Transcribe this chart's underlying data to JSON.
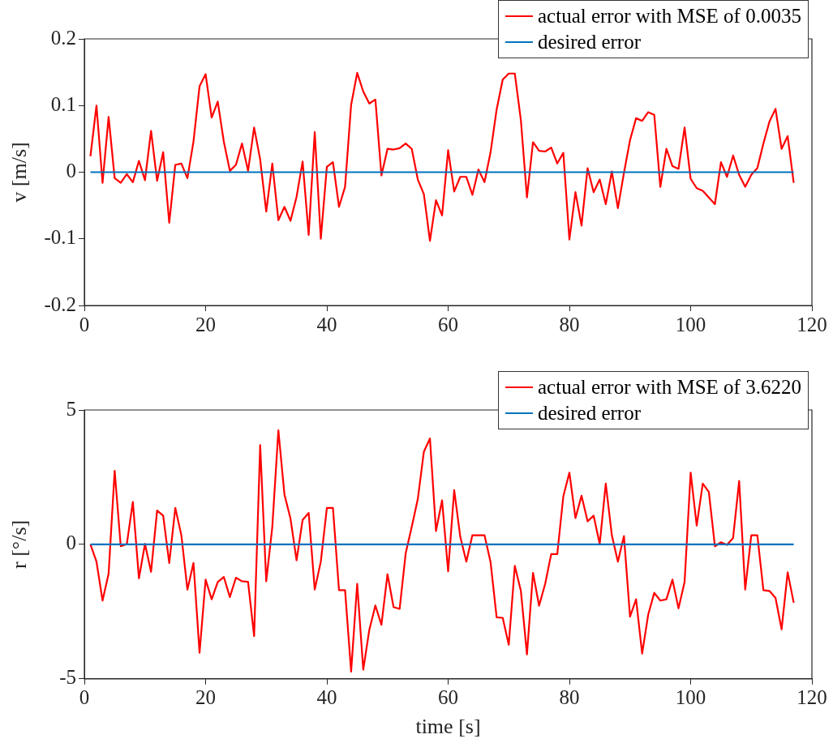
{
  "chart_data": [
    {
      "type": "line",
      "ylabel": "v [m/s]",
      "x": [
        1,
        2,
        3,
        4,
        5,
        6,
        7,
        8,
        9,
        10,
        11,
        12,
        13,
        14,
        15,
        16,
        17,
        18,
        19,
        20,
        21,
        22,
        23,
        24,
        25,
        26,
        27,
        28,
        29,
        30,
        31,
        32,
        33,
        34,
        35,
        36,
        37,
        38,
        39,
        40,
        41,
        42,
        43,
        44,
        45,
        46,
        47,
        48,
        49,
        50,
        51,
        52,
        53,
        54,
        55,
        56,
        57,
        58,
        59,
        60,
        61,
        62,
        63,
        64,
        65,
        66,
        67,
        68,
        69,
        70,
        71,
        72,
        73,
        74,
        75,
        76,
        77,
        78,
        79,
        80,
        81,
        82,
        83,
        84,
        85,
        86,
        87,
        88,
        89,
        90,
        91,
        92,
        93,
        94,
        95,
        96,
        97,
        98,
        99,
        100,
        101,
        102,
        103,
        104,
        105,
        106,
        107,
        108,
        109,
        110,
        111,
        112,
        113,
        114,
        115,
        116,
        117
      ],
      "series": [
        {
          "name": "actual error with MSE of 0.0035",
          "color": "#ff0000",
          "values": [
            0.024,
            0.1,
            -0.016,
            0.083,
            -0.009,
            -0.016,
            -0.003,
            -0.015,
            0.017,
            -0.012,
            0.062,
            -0.013,
            0.03,
            -0.076,
            0.011,
            0.013,
            -0.009,
            0.046,
            0.129,
            0.147,
            0.082,
            0.106,
            0.046,
            0.002,
            0.011,
            0.043,
            0.002,
            0.067,
            0.019,
            -0.059,
            0.013,
            -0.072,
            -0.052,
            -0.073,
            -0.037,
            0.016,
            -0.094,
            0.06,
            -0.1,
            0.008,
            0.015,
            -0.052,
            -0.022,
            0.101,
            0.149,
            0.121,
            0.103,
            0.109,
            -0.005,
            0.035,
            0.034,
            0.036,
            0.043,
            0.035,
            -0.011,
            -0.033,
            -0.103,
            -0.042,
            -0.065,
            0.033,
            -0.029,
            -0.007,
            -0.007,
            -0.034,
            0.004,
            -0.015,
            0.03,
            0.094,
            0.139,
            0.148,
            0.148,
            0.078,
            -0.038,
            0.045,
            0.032,
            0.031,
            0.037,
            0.013,
            0.029,
            -0.101,
            -0.03,
            -0.08,
            0.006,
            -0.03,
            -0.011,
            -0.048,
            0.001,
            -0.054,
            -0.001,
            0.048,
            0.081,
            0.077,
            0.09,
            0.086,
            -0.022,
            0.035,
            0.009,
            0.005,
            0.067,
            -0.01,
            -0.024,
            -0.028,
            -0.038,
            -0.048,
            0.015,
            -0.007,
            0.025,
            -0.004,
            -0.022,
            -0.004,
            0.006,
            0.043,
            0.076,
            0.095,
            0.035,
            0.054,
            -0.016
          ]
        },
        {
          "name": "desired error",
          "color": "#0072bd",
          "values": [
            0,
            0,
            0,
            0,
            0,
            0,
            0,
            0,
            0,
            0,
            0,
            0,
            0,
            0,
            0,
            0,
            0,
            0,
            0,
            0,
            0,
            0,
            0,
            0,
            0,
            0,
            0,
            0,
            0,
            0,
            0,
            0,
            0,
            0,
            0,
            0,
            0,
            0,
            0,
            0,
            0,
            0,
            0,
            0,
            0,
            0,
            0,
            0,
            0,
            0,
            0,
            0,
            0,
            0,
            0,
            0,
            0,
            0,
            0,
            0,
            0,
            0,
            0,
            0,
            0,
            0,
            0,
            0,
            0,
            0,
            0,
            0,
            0,
            0,
            0,
            0,
            0,
            0,
            0,
            0,
            0,
            0,
            0,
            0,
            0,
            0,
            0,
            0,
            0,
            0,
            0,
            0,
            0,
            0,
            0,
            0,
            0,
            0,
            0,
            0,
            0,
            0,
            0,
            0,
            0,
            0,
            0,
            0,
            0,
            0,
            0,
            0,
            0,
            0,
            0,
            0,
            0
          ]
        }
      ],
      "xlim": [
        0,
        120
      ],
      "xticks": [
        0,
        20,
        40,
        60,
        80,
        100,
        120
      ],
      "ylim": [
        -0.2,
        0.2
      ],
      "yticks": [
        -0.2,
        -0.1,
        0,
        0.1,
        0.2
      ],
      "grid": false,
      "legend": "top right",
      "marker": "none",
      "line_style": "solid"
    },
    {
      "type": "line",
      "xlabel": "time [s]",
      "ylabel": "r [°/s]",
      "x": [
        1,
        2,
        3,
        4,
        5,
        6,
        7,
        8,
        9,
        10,
        11,
        12,
        13,
        14,
        15,
        16,
        17,
        18,
        19,
        20,
        21,
        22,
        23,
        24,
        25,
        26,
        27,
        28,
        29,
        30,
        31,
        32,
        33,
        34,
        35,
        36,
        37,
        38,
        39,
        40,
        41,
        42,
        43,
        44,
        45,
        46,
        47,
        48,
        49,
        50,
        51,
        52,
        53,
        54,
        55,
        56,
        57,
        58,
        59,
        60,
        61,
        62,
        63,
        64,
        65,
        66,
        67,
        68,
        69,
        70,
        71,
        72,
        73,
        74,
        75,
        76,
        77,
        78,
        79,
        80,
        81,
        82,
        83,
        84,
        85,
        86,
        87,
        88,
        89,
        90,
        91,
        92,
        93,
        94,
        95,
        96,
        97,
        98,
        99,
        100,
        101,
        102,
        103,
        104,
        105,
        106,
        107,
        108,
        109,
        110,
        111,
        112,
        113,
        114,
        115,
        116,
        117
      ],
      "series": [
        {
          "name": "actual error with MSE of 3.6220",
          "color": "#ff0000",
          "values": [
            0,
            -0.64,
            -2.09,
            -1.09,
            2.74,
            -0.07,
            0.01,
            1.58,
            -1.26,
            0.02,
            -1.02,
            1.26,
            1.07,
            -0.69,
            1.36,
            0.34,
            -1.68,
            -0.69,
            -4.03,
            -1.31,
            -2.04,
            -1.4,
            -1.21,
            -1.96,
            -1.24,
            -1.37,
            -1.39,
            -3.41,
            3.69,
            -1.37,
            0.65,
            4.24,
            1.86,
            0.96,
            -0.59,
            0.91,
            1.17,
            -1.68,
            -0.64,
            1.36,
            1.36,
            -1.7,
            -1.7,
            -4.73,
            -1.47,
            -4.66,
            -3.18,
            -2.27,
            -2.99,
            -1.11,
            -2.33,
            -2.4,
            -0.33,
            0.65,
            1.69,
            3.45,
            3.94,
            0.5,
            1.64,
            -1.0,
            2.02,
            0.29,
            -0.64,
            0.34,
            0.34,
            0.34,
            -0.66,
            -2.71,
            -2.73,
            -3.73,
            -0.8,
            -1.73,
            -4.09,
            -1.06,
            -2.28,
            -1.47,
            -0.36,
            -0.36,
            1.79,
            2.67,
            0.98,
            1.81,
            0.86,
            1.07,
            0.01,
            2.26,
            0.34,
            -0.64,
            0.31,
            -2.69,
            -2.04,
            -4.06,
            -2.61,
            -1.8,
            -2.09,
            -2.04,
            -1.31,
            -2.38,
            -1.4,
            2.67,
            0.7,
            2.26,
            1.95,
            -0.07,
            0.08,
            -0.02,
            0.24,
            2.36,
            -1.68,
            0.34,
            0.34,
            -1.7,
            -1.73,
            -1.99,
            -3.16,
            -1.04,
            -2.17
          ]
        },
        {
          "name": "desired error",
          "color": "#0072bd",
          "values": [
            0,
            0,
            0,
            0,
            0,
            0,
            0,
            0,
            0,
            0,
            0,
            0,
            0,
            0,
            0,
            0,
            0,
            0,
            0,
            0,
            0,
            0,
            0,
            0,
            0,
            0,
            0,
            0,
            0,
            0,
            0,
            0,
            0,
            0,
            0,
            0,
            0,
            0,
            0,
            0,
            0,
            0,
            0,
            0,
            0,
            0,
            0,
            0,
            0,
            0,
            0,
            0,
            0,
            0,
            0,
            0,
            0,
            0,
            0,
            0,
            0,
            0,
            0,
            0,
            0,
            0,
            0,
            0,
            0,
            0,
            0,
            0,
            0,
            0,
            0,
            0,
            0,
            0,
            0,
            0,
            0,
            0,
            0,
            0,
            0,
            0,
            0,
            0,
            0,
            0,
            0,
            0,
            0,
            0,
            0,
            0,
            0,
            0,
            0,
            0,
            0,
            0,
            0,
            0,
            0,
            0,
            0,
            0,
            0,
            0,
            0,
            0,
            0,
            0,
            0,
            0,
            0
          ]
        }
      ],
      "xlim": [
        0,
        120
      ],
      "xticks": [
        0,
        20,
        40,
        60,
        80,
        100,
        120
      ],
      "ylim": [
        -5,
        5
      ],
      "yticks": [
        -5,
        0,
        5
      ],
      "grid": false,
      "legend": "top right",
      "marker": "none",
      "line_style": "solid"
    }
  ]
}
